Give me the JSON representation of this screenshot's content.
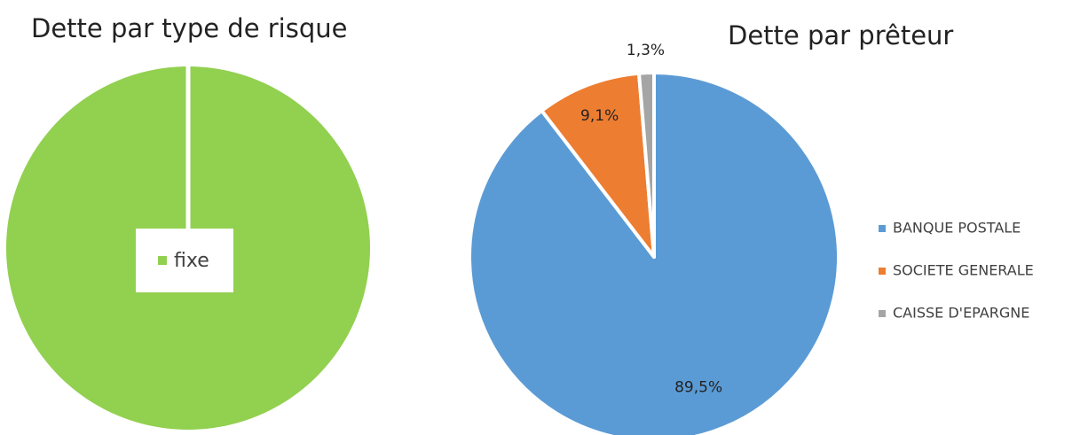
{
  "chart_data": [
    {
      "type": "pie",
      "title": "Dette par type de risque",
      "categories": [
        "fixe"
      ],
      "values": [
        100
      ],
      "colors": [
        "#92d050"
      ],
      "legend": "inside"
    },
    {
      "type": "pie",
      "title": "Dette par prêteur",
      "categories": [
        "BANQUE POSTALE",
        "SOCIETE GENERALE",
        "CAISSE D'EPARGNE"
      ],
      "values": [
        89.5,
        9.1,
        1.3
      ],
      "value_labels": [
        "89,5%",
        "9,1%",
        "1,3%"
      ],
      "colors": [
        "#5b9bd5",
        "#ed7d31",
        "#a5a5a5"
      ],
      "legend": "right"
    }
  ]
}
